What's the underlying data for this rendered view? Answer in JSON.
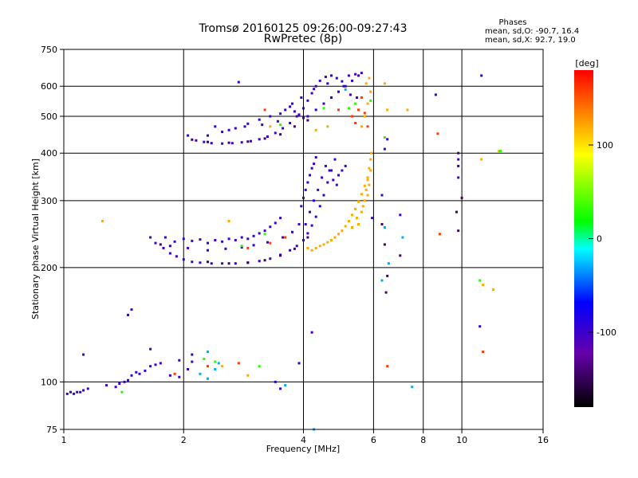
{
  "chart_data": {
    "type": "scatter",
    "title": "Tromsø 20160125 09:26:00-09:27:43",
    "subtitle": "RwPretec (8p)",
    "info": {
      "heading": "Phases",
      "line_o": "mean, sd,O: -90.7, 16.4",
      "line_x": "mean, sd,X:  92.7, 19.0"
    },
    "xlabel": "Frequency [MHz]",
    "ylabel": "Stationary phase Virtual Height [km]",
    "x_scale": "log",
    "y_scale": "log",
    "xlim": [
      1,
      16
    ],
    "ylim": [
      75,
      750
    ],
    "x_ticks": [
      1,
      2,
      4,
      6,
      8,
      10,
      16
    ],
    "x_tick_labels": [
      "1",
      "2",
      "4",
      "6",
      "8",
      "10",
      "16"
    ],
    "x_gridlines": [
      2,
      4,
      6,
      8,
      10
    ],
    "y_ticks": [
      75,
      100,
      200,
      300,
      400,
      500,
      600,
      750
    ],
    "y_tick_labels": [
      "75",
      "100",
      "200",
      "300",
      "400",
      "500",
      "600",
      "750"
    ],
    "y_gridlines": [
      100,
      200,
      300,
      400,
      500,
      600
    ],
    "colorbar": {
      "label": "[deg]",
      "range": [
        -180,
        180
      ],
      "tick_values": [
        100,
        0,
        -100
      ],
      "tick_labels": [
        "100",
        "0",
        "-100"
      ],
      "colors": [
        "#000000",
        "#6600aa",
        "#0000ff",
        "#00ffff",
        "#00ff00",
        "#ffff00",
        "#ff0000"
      ]
    },
    "series": [
      {
        "phase": -100,
        "points": [
          [
            1.02,
            93
          ],
          [
            1.04,
            94
          ],
          [
            1.06,
            93
          ],
          [
            1.08,
            94
          ],
          [
            1.1,
            94
          ],
          [
            1.12,
            95
          ],
          [
            1.15,
            96
          ],
          [
            1.28,
            98
          ],
          [
            1.35,
            97
          ],
          [
            1.38,
            99
          ],
          [
            1.42,
            100
          ],
          [
            1.45,
            101
          ],
          [
            1.48,
            104
          ],
          [
            1.52,
            106
          ],
          [
            1.55,
            105
          ],
          [
            1.6,
            107
          ],
          [
            1.65,
            110
          ],
          [
            1.7,
            111
          ],
          [
            1.75,
            112
          ],
          [
            1.85,
            104
          ],
          [
            1.95,
            103
          ],
          [
            2.05,
            108
          ],
          [
            2.1,
            113
          ],
          [
            1.12,
            118
          ],
          [
            1.45,
            150
          ],
          [
            1.48,
            155
          ],
          [
            1.65,
            122
          ],
          [
            1.95,
            114
          ],
          [
            2.1,
            118
          ],
          [
            3.4,
            100
          ],
          [
            3.5,
            96
          ],
          [
            3.9,
            112
          ],
          [
            4.2,
            135
          ],
          [
            1.65,
            240
          ],
          [
            1.7,
            232
          ],
          [
            1.78,
            225
          ],
          [
            1.85,
            218
          ],
          [
            1.92,
            214
          ],
          [
            2.0,
            210
          ],
          [
            2.1,
            207
          ],
          [
            2.2,
            206
          ],
          [
            2.35,
            205
          ],
          [
            2.5,
            205
          ],
          [
            2.7,
            205
          ],
          [
            2.9,
            206
          ],
          [
            3.1,
            208
          ],
          [
            3.3,
            211
          ],
          [
            3.5,
            216
          ],
          [
            3.7,
            222
          ],
          [
            3.85,
            228
          ],
          [
            4.0,
            236
          ],
          [
            4.1,
            246
          ],
          [
            4.2,
            258
          ],
          [
            4.3,
            272
          ],
          [
            4.4,
            290
          ],
          [
            4.5,
            310
          ],
          [
            4.6,
            335
          ],
          [
            4.7,
            360
          ],
          [
            4.8,
            385
          ],
          [
            1.8,
            240
          ],
          [
            1.9,
            234
          ],
          [
            2.0,
            238
          ],
          [
            2.1,
            235
          ],
          [
            2.2,
            237
          ],
          [
            2.3,
            232
          ],
          [
            2.4,
            236
          ],
          [
            2.5,
            234
          ],
          [
            2.6,
            238
          ],
          [
            2.7,
            236
          ],
          [
            2.8,
            240
          ],
          [
            2.9,
            238
          ],
          [
            3.0,
            242
          ],
          [
            3.1,
            246
          ],
          [
            3.2,
            250
          ],
          [
            3.3,
            256
          ],
          [
            3.4,
            262
          ],
          [
            3.5,
            270
          ],
          [
            1.85,
            228
          ],
          [
            2.05,
            225
          ],
          [
            2.3,
            222
          ],
          [
            2.55,
            224
          ],
          [
            2.8,
            226
          ],
          [
            3.0,
            229
          ],
          [
            3.25,
            233
          ],
          [
            3.55,
            240
          ],
          [
            3.75,
            248
          ],
          [
            3.9,
            260
          ],
          [
            3.95,
            290
          ],
          [
            4.0,
            305
          ],
          [
            4.05,
            320
          ],
          [
            4.1,
            335
          ],
          [
            4.15,
            350
          ],
          [
            4.2,
            365
          ],
          [
            4.25,
            375
          ],
          [
            4.3,
            390
          ],
          [
            4.05,
            260
          ],
          [
            4.15,
            280
          ],
          [
            4.25,
            300
          ],
          [
            4.35,
            320
          ],
          [
            4.45,
            345
          ],
          [
            4.55,
            370
          ],
          [
            4.65,
            360
          ],
          [
            4.75,
            340
          ],
          [
            4.85,
            330
          ],
          [
            4.9,
            350
          ],
          [
            5.0,
            360
          ],
          [
            5.1,
            370
          ],
          [
            2.05,
            445
          ],
          [
            2.15,
            432
          ],
          [
            2.25,
            428
          ],
          [
            2.35,
            425
          ],
          [
            2.5,
            424
          ],
          [
            2.65,
            425
          ],
          [
            2.8,
            427
          ],
          [
            2.95,
            430
          ],
          [
            3.1,
            435
          ],
          [
            3.25,
            442
          ],
          [
            3.4,
            452
          ],
          [
            3.55,
            465
          ],
          [
            3.7,
            480
          ],
          [
            3.85,
            500
          ],
          [
            4.0,
            525
          ],
          [
            4.1,
            550
          ],
          [
            4.2,
            575
          ],
          [
            4.3,
            600
          ],
          [
            4.4,
            620
          ],
          [
            4.55,
            635
          ],
          [
            4.7,
            640
          ],
          [
            4.85,
            630
          ],
          [
            5.0,
            618
          ],
          [
            5.2,
            640
          ],
          [
            5.4,
            645
          ],
          [
            5.6,
            650
          ],
          [
            2.3,
            445
          ],
          [
            2.5,
            455
          ],
          [
            2.7,
            465
          ],
          [
            2.9,
            478
          ],
          [
            3.1,
            490
          ],
          [
            3.3,
            500
          ],
          [
            3.5,
            508
          ],
          [
            3.6,
            520
          ],
          [
            3.7,
            530
          ],
          [
            3.8,
            515
          ],
          [
            3.9,
            505
          ],
          [
            4.0,
            495
          ],
          [
            4.1,
            500
          ],
          [
            4.3,
            520
          ],
          [
            4.5,
            540
          ],
          [
            4.7,
            560
          ],
          [
            4.9,
            580
          ],
          [
            5.1,
            600
          ],
          [
            5.3,
            620
          ],
          [
            5.5,
            640
          ],
          [
            2.4,
            470
          ],
          [
            2.6,
            460
          ],
          [
            2.85,
            470
          ],
          [
            3.15,
            475
          ],
          [
            3.45,
            485
          ],
          [
            3.75,
            540
          ],
          [
            3.95,
            560
          ],
          [
            4.25,
            590
          ],
          [
            4.6,
            610
          ],
          [
            5.05,
            600
          ],
          [
            5.25,
            570
          ],
          [
            5.45,
            560
          ],
          [
            2.75,
            615
          ],
          [
            5.95,
            270
          ],
          [
            6.3,
            310
          ],
          [
            7.0,
            275
          ],
          [
            8.6,
            570
          ],
          [
            9.8,
            345
          ],
          [
            9.8,
            385
          ],
          [
            11.2,
            640
          ],
          [
            11.1,
            140
          ],
          [
            6.4,
            410
          ],
          [
            6.5,
            435
          ]
        ]
      },
      {
        "phase": -145,
        "points": [
          [
            2.1,
            434
          ],
          [
            2.3,
            428
          ],
          [
            2.6,
            426
          ],
          [
            2.9,
            429
          ],
          [
            3.2,
            437
          ],
          [
            3.5,
            448
          ],
          [
            3.8,
            470
          ],
          [
            4.1,
            488
          ],
          [
            2.3,
            207
          ],
          [
            2.6,
            205
          ],
          [
            2.9,
            206
          ],
          [
            3.2,
            209
          ],
          [
            3.5,
            215
          ],
          [
            3.8,
            224
          ],
          [
            4.1,
            240
          ],
          [
            1.75,
            230
          ],
          [
            6.3,
            260
          ],
          [
            6.4,
            230
          ],
          [
            6.5,
            190
          ],
          [
            6.45,
            172
          ],
          [
            7.0,
            215
          ],
          [
            9.8,
            400
          ],
          [
            9.8,
            370
          ],
          [
            9.7,
            280
          ],
          [
            9.8,
            250
          ],
          [
            10.0,
            305
          ]
        ]
      },
      {
        "phase": 120,
        "points": [
          [
            4.1,
            225
          ],
          [
            4.2,
            222
          ],
          [
            4.3,
            225
          ],
          [
            4.4,
            228
          ],
          [
            4.5,
            230
          ],
          [
            4.6,
            233
          ],
          [
            4.7,
            236
          ],
          [
            4.8,
            240
          ],
          [
            4.9,
            245
          ],
          [
            5.0,
            250
          ],
          [
            5.1,
            257
          ],
          [
            5.2,
            265
          ],
          [
            5.3,
            275
          ],
          [
            5.4,
            285
          ],
          [
            5.5,
            298
          ],
          [
            5.6,
            312
          ],
          [
            5.7,
            328
          ],
          [
            5.8,
            345
          ],
          [
            5.85,
            365
          ],
          [
            5.9,
            385
          ],
          [
            5.5,
            260
          ],
          [
            5.6,
            280
          ],
          [
            5.7,
            300
          ],
          [
            5.75,
            320
          ],
          [
            5.8,
            340
          ],
          [
            5.3,
            255
          ],
          [
            5.45,
            270
          ],
          [
            5.65,
            290
          ],
          [
            5.8,
            310
          ],
          [
            5.85,
            330
          ],
          [
            5.9,
            360
          ],
          [
            5.92,
            400
          ],
          [
            5.6,
            470
          ],
          [
            5.7,
            500
          ],
          [
            5.8,
            540
          ],
          [
            5.9,
            580
          ],
          [
            5.75,
            610
          ],
          [
            5.85,
            630
          ],
          [
            4.3,
            460
          ],
          [
            4.6,
            470
          ],
          [
            3.3,
            470
          ],
          [
            6.4,
            610
          ],
          [
            6.5,
            520
          ],
          [
            7.3,
            520
          ],
          [
            12.4,
            405
          ],
          [
            11.2,
            385
          ],
          [
            11.3,
            180
          ],
          [
            12.0,
            175
          ],
          [
            1.25,
            265
          ],
          [
            2.6,
            265
          ],
          [
            2.5,
            110
          ],
          [
            2.9,
            104
          ]
        ]
      },
      {
        "phase": 160,
        "points": [
          [
            5.3,
            500
          ],
          [
            5.5,
            520
          ],
          [
            5.6,
            560
          ],
          [
            5.4,
            480
          ],
          [
            5.8,
            470
          ],
          [
            5.7,
            510
          ],
          [
            4.9,
            520
          ],
          [
            3.6,
            240
          ],
          [
            3.3,
            232
          ],
          [
            2.9,
            225
          ],
          [
            2.3,
            110
          ],
          [
            2.75,
            112
          ],
          [
            8.7,
            450
          ],
          [
            8.8,
            245
          ],
          [
            11.3,
            120
          ],
          [
            6.5,
            110
          ],
          [
            1.9,
            105
          ],
          [
            3.2,
            520
          ]
        ]
      },
      {
        "phase": 30,
        "points": [
          [
            5.4,
            540
          ],
          [
            5.2,
            525
          ],
          [
            5.9,
            550
          ],
          [
            4.5,
            525
          ],
          [
            3.5,
            475
          ],
          [
            3.2,
            245
          ],
          [
            2.8,
            228
          ],
          [
            2.25,
            115
          ],
          [
            2.4,
            113
          ],
          [
            1.4,
            94
          ],
          [
            6.4,
            440
          ],
          [
            12.5,
            405
          ],
          [
            11.1,
            185
          ],
          [
            3.1,
            110
          ]
        ]
      },
      {
        "phase": -30,
        "points": [
          [
            2.2,
            105
          ],
          [
            2.3,
            102
          ],
          [
            2.4,
            108
          ],
          [
            2.3,
            120
          ],
          [
            2.45,
            112
          ],
          [
            6.3,
            185
          ],
          [
            7.5,
            97
          ],
          [
            7.1,
            240
          ],
          [
            6.55,
            205
          ],
          [
            4.25,
            75
          ],
          [
            6.4,
            255
          ],
          [
            5.1,
            588
          ],
          [
            3.6,
            98
          ]
        ]
      }
    ]
  }
}
